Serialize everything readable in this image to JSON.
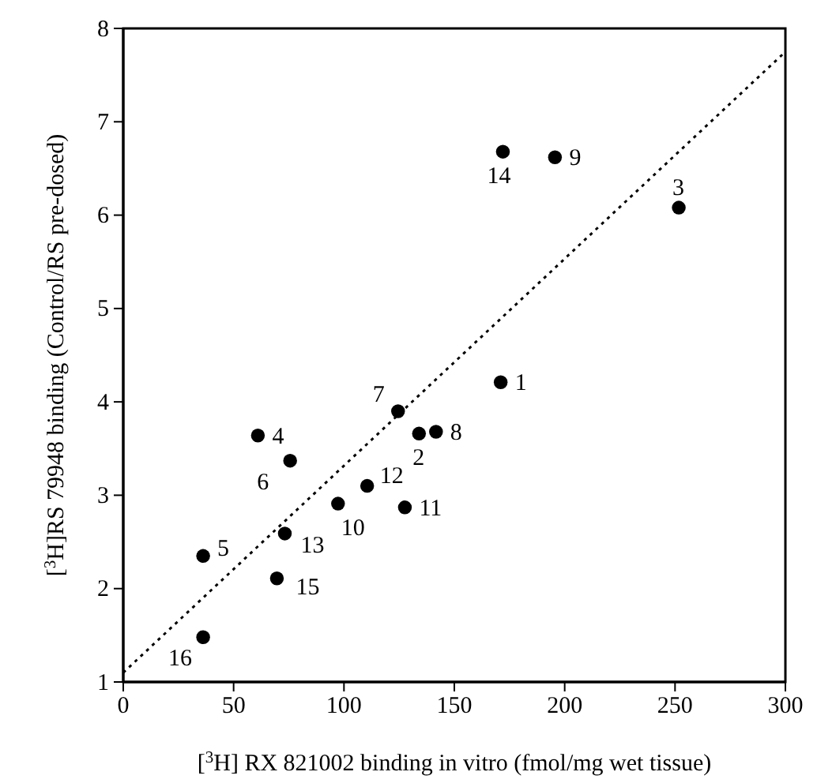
{
  "chart_data": {
    "type": "scatter",
    "xlabel": "[$^{3}$H] RX 821002 binding in vitro (fmol/mg wet tissue)",
    "ylabel": "[$^{3}$H]RS 79948 binding (Control/RS pre-dosed)",
    "xlim": [
      0,
      300
    ],
    "ylim": [
      1,
      8
    ],
    "xticks": [
      0,
      50,
      100,
      150,
      200,
      250,
      300
    ],
    "yticks": [
      1,
      2,
      3,
      4,
      5,
      6,
      7,
      8
    ],
    "grid": false,
    "marker": "circle",
    "series": [
      {
        "color": "#000000",
        "x": [
          171,
          134,
          251.7,
          61,
          36.2,
          75.6,
          124.5,
          141.7,
          195.6,
          97.3,
          127.6,
          110.5,
          73.2,
          172,
          69.6,
          36.2
        ],
        "values": [
          4.21,
          3.66,
          6.08,
          3.64,
          2.35,
          3.37,
          3.9,
          3.68,
          6.62,
          2.91,
          2.87,
          3.1,
          2.59,
          6.68,
          2.11,
          1.48
        ]
      },
      {
        "type": "line",
        "color": "#000000",
        "marker": "none",
        "line_style": "dotted",
        "x": [
          0,
          300
        ],
        "values": [
          1.1,
          7.75
        ]
      }
    ],
    "annotations": [
      {
        "text": "1",
        "x": 171,
        "y": 4.21
      },
      {
        "text": "2",
        "x": 134,
        "y": 3.66
      },
      {
        "text": "3",
        "x": 251.7,
        "y": 6.08
      },
      {
        "text": "4",
        "x": 61,
        "y": 3.64
      },
      {
        "text": "5",
        "x": 36.2,
        "y": 2.35
      },
      {
        "text": "6",
        "x": 75.6,
        "y": 3.37
      },
      {
        "text": "7",
        "x": 124.5,
        "y": 3.9
      },
      {
        "text": "8",
        "x": 141.7,
        "y": 3.68
      },
      {
        "text": "9",
        "x": 195.6,
        "y": 6.62
      },
      {
        "text": "10",
        "x": 97.3,
        "y": 2.91
      },
      {
        "text": "11",
        "x": 127.6,
        "y": 2.87
      },
      {
        "text": "12",
        "x": 110.5,
        "y": 3.1
      },
      {
        "text": "13",
        "x": 73.2,
        "y": 2.59
      },
      {
        "text": "14",
        "x": 172,
        "y": 6.68
      },
      {
        "text": "15",
        "x": 69.6,
        "y": 2.11
      },
      {
        "text": "16",
        "x": 36.2,
        "y": 1.48
      }
    ]
  }
}
